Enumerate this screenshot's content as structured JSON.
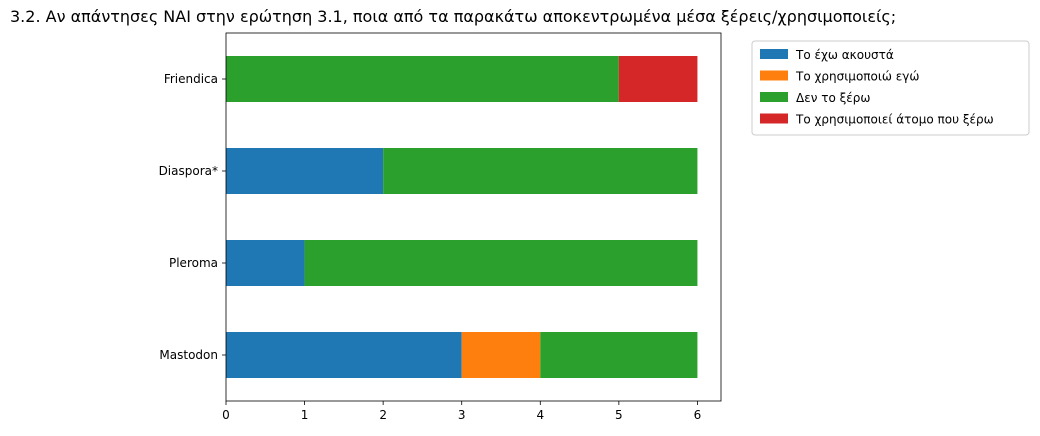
{
  "chart_data": {
    "type": "bar",
    "orientation": "horizontal",
    "stacked": true,
    "title": "3.2. Αν απάντησες ΝΑΙ στην ερώτηση 3.1, ποια από τα παρακάτω αποκεντρωμένα μέσα ξέρεις/χρησιμοποιείς;",
    "xlabel": "",
    "ylabel": "",
    "categories": [
      "Mastodon",
      "Pleroma",
      "Diaspora*",
      "Friendica"
    ],
    "series": [
      {
        "name": "Το έχω ακουστά",
        "color": "#1f77b4",
        "values": [
          3,
          1,
          2,
          0
        ]
      },
      {
        "name": "Το χρησιμοποιώ εγώ",
        "color": "#ff7f0e",
        "values": [
          1,
          0,
          0,
          0
        ]
      },
      {
        "name": "Δεν το ξέρω",
        "color": "#2ca02c",
        "values": [
          2,
          5,
          4,
          5
        ]
      },
      {
        "name": "Το χρησιμοποιεί άτομο που ξέρω",
        "color": "#d62728",
        "values": [
          0,
          0,
          0,
          1
        ]
      }
    ],
    "xlim": [
      0,
      6.3
    ],
    "xticks": [
      0,
      1,
      2,
      3,
      4,
      5,
      6
    ],
    "grid": false,
    "legend": "outside-top-right"
  }
}
